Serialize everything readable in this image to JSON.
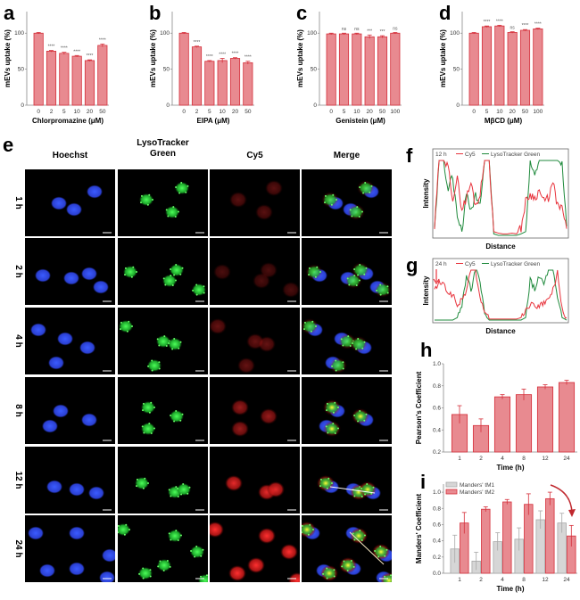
{
  "colors": {
    "bar_fill": "#e88a90",
    "bar_stroke": "#d52f3a",
    "gray_fill": "#d6d6d6",
    "gray_stroke": "#a8a8a8",
    "cy5": "#e8333c",
    "lyso": "#1f8a3c"
  },
  "panel_e": {
    "label": "e",
    "columns": [
      "Hoechst",
      "LysoTracker Green",
      "Cy5",
      "Merge"
    ],
    "column_lines": [
      [
        "Hoechst"
      ],
      [
        "LysoTracker",
        "Green"
      ],
      [
        "Cy5"
      ],
      [
        "Merge"
      ]
    ],
    "rows": [
      "1 h",
      "2 h",
      "4 h",
      "8 h",
      "12 h",
      "24 h"
    ]
  },
  "chart_data": [
    {
      "label": "a",
      "type": "bar",
      "xlabel": "Chlorpromazine (μM)",
      "ylabel": "mEVs uptake (%)",
      "categories": [
        "0",
        "2",
        "5",
        "10",
        "20",
        "50"
      ],
      "values": [
        100,
        75,
        72,
        68,
        62,
        83
      ],
      "errors": [
        1,
        1,
        1.5,
        1,
        1,
        2
      ],
      "significance": [
        "",
        "****",
        "****",
        "****",
        "****",
        "****"
      ],
      "yticks": [
        0,
        50,
        100
      ],
      "ylim": [
        0,
        130
      ]
    },
    {
      "label": "b",
      "type": "bar",
      "xlabel": "EIPA (μM)",
      "ylabel": "mEVs uptake (%)",
      "categories": [
        "0",
        "2",
        "5",
        "10",
        "20",
        "50"
      ],
      "values": [
        100,
        81,
        61,
        62,
        65,
        59
      ],
      "errors": [
        1,
        1,
        1,
        3,
        1,
        2
      ],
      "significance": [
        "",
        "****",
        "****",
        "****",
        "****",
        "****"
      ],
      "yticks": [
        0,
        50,
        100
      ],
      "ylim": [
        0,
        130
      ]
    },
    {
      "label": "c",
      "type": "bar",
      "xlabel": "Genistein (μM)",
      "ylabel": "mEVs uptake (%)",
      "categories": [
        "0",
        "5",
        "10",
        "20",
        "50",
        "100"
      ],
      "values": [
        99,
        99,
        99,
        95,
        95,
        100
      ],
      "errors": [
        1,
        1,
        1,
        2.5,
        1.5,
        1
      ],
      "significance": [
        "",
        "ns",
        "ns",
        "***",
        "***",
        "ns"
      ],
      "yticks": [
        0,
        50,
        100
      ],
      "ylim": [
        0,
        130
      ]
    },
    {
      "label": "d",
      "type": "bar",
      "xlabel": "MβCD (μM)",
      "ylabel": "mEVs uptake (%)",
      "categories": [
        "0",
        "5",
        "10",
        "20",
        "50",
        "100"
      ],
      "values": [
        100,
        109,
        110,
        101,
        104,
        106
      ],
      "errors": [
        1,
        1,
        1,
        1,
        1,
        1
      ],
      "significance": [
        "",
        "****",
        "****",
        "ns",
        "****",
        "****"
      ],
      "yticks": [
        0,
        50,
        100
      ],
      "ylim": [
        0,
        130
      ]
    },
    {
      "label": "f",
      "type": "line",
      "annotation": "12 h",
      "xlabel": "Distance",
      "ylabel": "Intensity",
      "series": [
        {
          "name": "Cy5",
          "values": [
            0.1,
            1,
            1,
            0.9,
            0.5,
            0.75,
            0.35,
            0.5,
            0.7,
            0.4,
            0.55,
            1,
            1,
            0.05,
            0.03,
            0.02,
            0.02,
            0.03,
            0.02,
            0.1,
            0.45,
            0.55,
            0.5,
            0.6,
            0.45,
            0.5,
            0.7,
            0.4,
            0.35,
            0.1
          ]
        },
        {
          "name": "LysoTracker Green",
          "values": [
            0.1,
            1,
            1,
            0.6,
            0.8,
            0.2,
            0.05,
            0.6,
            0.3,
            0.55,
            0.45,
            1,
            1,
            0.02,
            0,
            0,
            0,
            0,
            0,
            0.02,
            0.05,
            1,
            0.85,
            1,
            1,
            1,
            1,
            1,
            0.95,
            0.1
          ]
        }
      ]
    },
    {
      "label": "g",
      "type": "line",
      "annotation": "24 h",
      "xlabel": "Distance",
      "ylabel": "Intensity",
      "series": [
        {
          "name": "Cy5",
          "values": [
            0.6,
            0.75,
            0.7,
            0.55,
            0.5,
            0.3,
            0.4,
            0.6,
            1,
            1,
            0.4,
            0.2,
            0.02,
            0.02,
            0.02,
            0.02,
            0.02,
            0.02,
            0.02,
            0.05,
            0.2,
            0.3,
            0.3,
            0.25,
            0.35,
            0.4,
            0.6,
            0.95,
            0.2,
            0.05
          ]
        },
        {
          "name": "LysoTracker Green",
          "values": [
            0,
            0,
            0,
            0,
            0,
            0.05,
            0.3,
            0.9,
            0.6,
            1,
            0.8,
            0.1,
            0,
            0,
            0,
            0,
            0,
            0,
            0,
            0,
            0.05,
            0.8,
            0.6,
            0.9,
            0.7,
            1,
            1,
            0.4,
            0.05,
            0
          ]
        }
      ]
    },
    {
      "label": "h",
      "type": "bar",
      "xlabel": "Time (h)",
      "ylabel": "Pearson's Coefficient",
      "categories": [
        "1",
        "2",
        "4",
        "8",
        "12",
        "24"
      ],
      "values": [
        0.54,
        0.44,
        0.7,
        0.72,
        0.79,
        0.83
      ],
      "errors": [
        0.08,
        0.06,
        0.02,
        0.05,
        0.02,
        0.02
      ],
      "yticks": [
        0.2,
        0.4,
        0.6,
        0.8,
        1.0
      ],
      "ylim": [
        0.2,
        1.0
      ]
    },
    {
      "label": "i",
      "type": "bar",
      "xlabel": "Time (h)",
      "ylabel": "Manders' Coefficient",
      "categories": [
        "1",
        "2",
        "4",
        "8",
        "12",
        "24"
      ],
      "yticks": [
        0.0,
        0.2,
        0.4,
        0.6,
        0.8,
        1.0
      ],
      "ylim": [
        0,
        1.1
      ],
      "legend": "top-left",
      "series": [
        {
          "name": "Manders' tM1",
          "values": [
            0.3,
            0.15,
            0.39,
            0.42,
            0.66,
            0.62
          ],
          "errors": [
            0.17,
            0.11,
            0.11,
            0.14,
            0.11,
            0.12
          ]
        },
        {
          "name": "Manders' tM2",
          "values": [
            0.62,
            0.79,
            0.88,
            0.85,
            0.92,
            0.46
          ],
          "errors": [
            0.13,
            0.03,
            0.03,
            0.13,
            0.08,
            0.13
          ]
        }
      ]
    }
  ]
}
